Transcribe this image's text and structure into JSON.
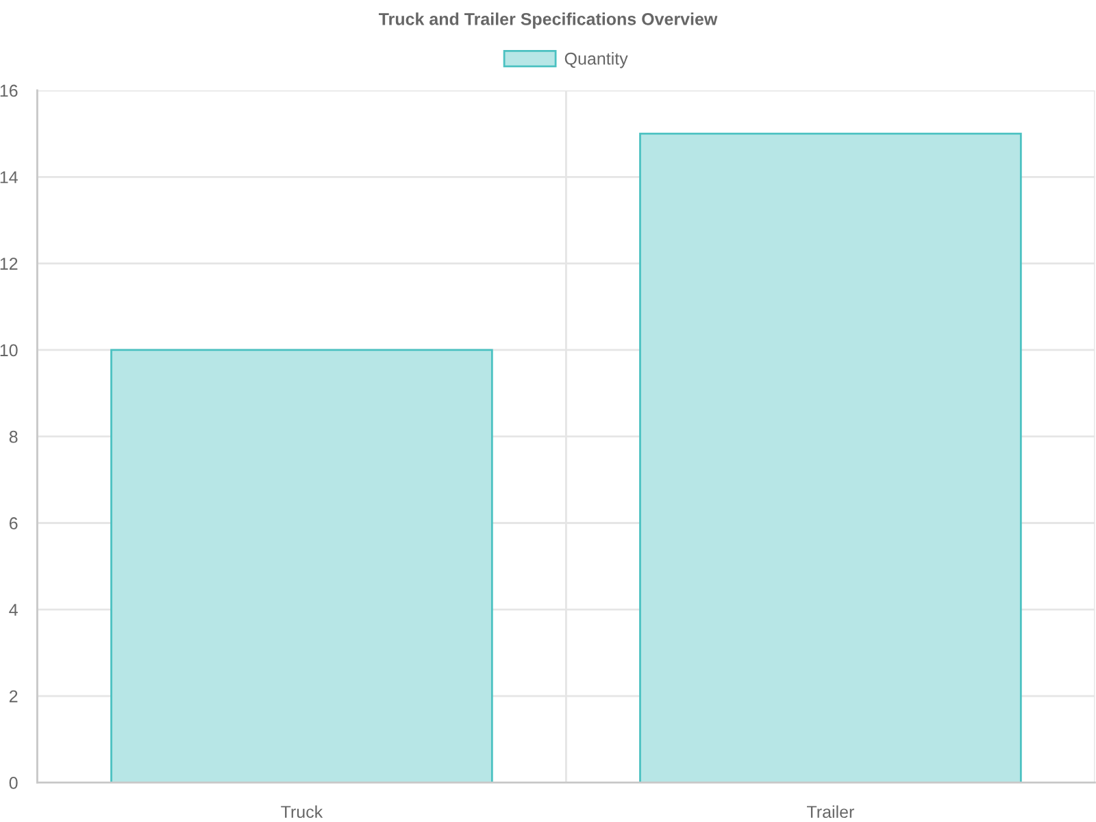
{
  "chart_data": {
    "type": "bar",
    "title": "Truck and Trailer Specifications Overview",
    "categories": [
      "Truck",
      "Trailer"
    ],
    "series": [
      {
        "name": "Quantity",
        "color": "#b7e6e6",
        "values": [
          10,
          15
        ]
      }
    ],
    "ylim": [
      0,
      16
    ],
    "yticks": [
      0,
      2,
      4,
      6,
      8,
      10,
      12,
      14,
      16
    ],
    "grid": true,
    "legend": "top"
  }
}
